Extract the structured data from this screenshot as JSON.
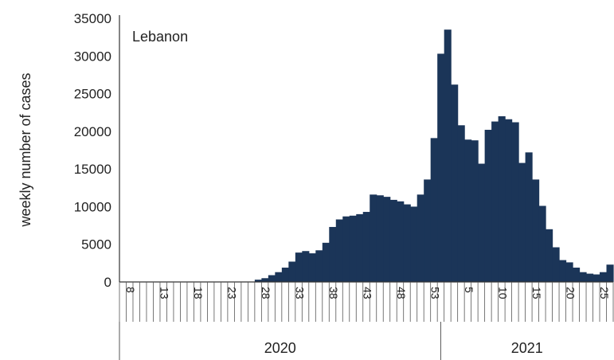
{
  "chart_data": {
    "type": "bar",
    "title": "",
    "annotation": "Lebanon",
    "ylabel": "weekly number of cases",
    "xlabel": "",
    "ylim": [
      0,
      35000
    ],
    "yticks": [
      "0",
      "5000",
      "10000",
      "15000",
      "20000",
      "25000",
      "30000",
      "35000"
    ],
    "grid": false,
    "bar_color": "#1b3558",
    "x_tick_labels": [
      "8",
      "13",
      "18",
      "23",
      "28",
      "33",
      "38",
      "43",
      "48",
      "53",
      "5",
      "10",
      "15",
      "20",
      "25"
    ],
    "year_labels": [
      "2020",
      "2021"
    ],
    "series": [
      {
        "values": [
          0,
          0,
          0,
          0,
          0,
          0,
          0,
          0,
          0,
          0,
          0,
          0,
          0,
          0,
          0,
          0,
          0,
          0,
          0,
          0,
          300,
          500,
          900,
          1300,
          1900,
          2700,
          3900,
          4100,
          3800,
          4200,
          5200,
          7300,
          8300,
          8700,
          8800,
          9000,
          9300,
          11600,
          11500,
          11300,
          10900,
          10700,
          10300,
          10000,
          11600,
          13600,
          19100,
          30300,
          33500,
          26200,
          20800,
          18900,
          18800,
          15700,
          20200,
          21300,
          22000,
          21600,
          21200,
          15800,
          17200,
          13600,
          10100,
          7000,
          4600,
          2900,
          2600,
          1900,
          1300,
          1100,
          1000,
          1300,
          2300
        ]
      }
    ]
  }
}
